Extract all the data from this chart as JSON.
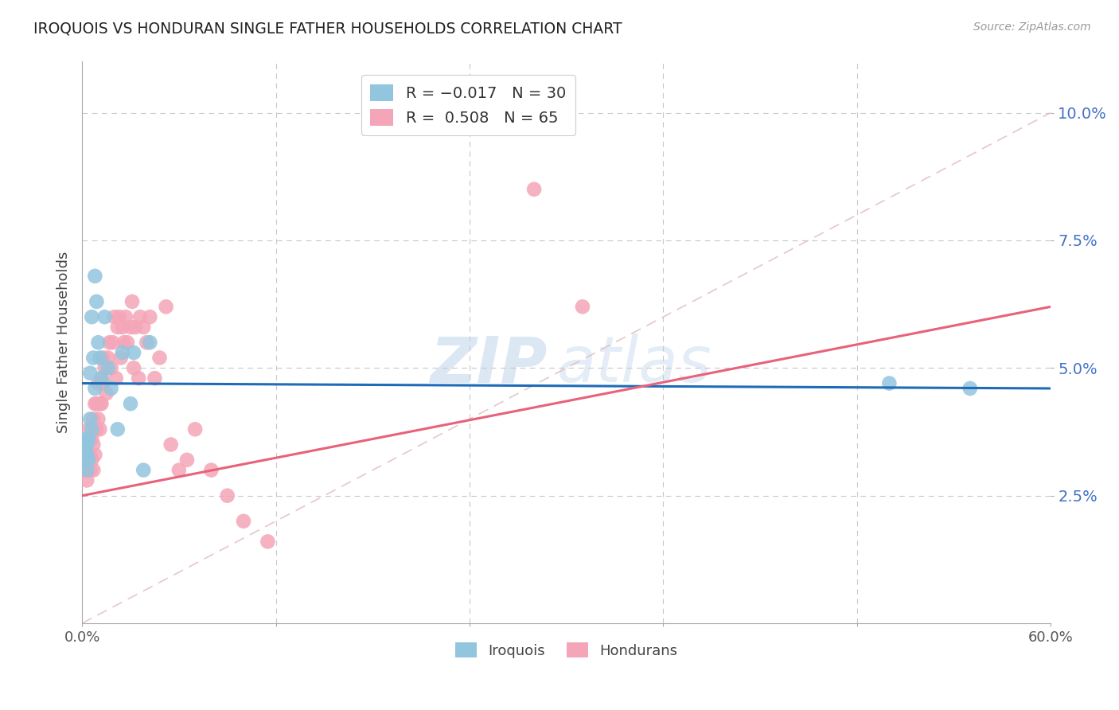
{
  "title": "IROQUOIS VS HONDURAN SINGLE FATHER HOUSEHOLDS CORRELATION CHART",
  "source": "Source: ZipAtlas.com",
  "ylabel": "Single Father Households",
  "ytick_labels": [
    "2.5%",
    "5.0%",
    "7.5%",
    "10.0%"
  ],
  "ytick_values": [
    0.025,
    0.05,
    0.075,
    0.1
  ],
  "xlim": [
    0.0,
    0.6
  ],
  "ylim": [
    0.0,
    0.11
  ],
  "watermark_zip": "ZIP",
  "watermark_atlas": "atlas",
  "iroquois_color": "#92c5de",
  "honduran_color": "#f4a6b8",
  "iroquois_line_color": "#1e6bb8",
  "honduran_line_color": "#e8627a",
  "diagonal_line_color": "#e0b8c0",
  "background_color": "#ffffff",
  "iroquois_x": [
    0.001,
    0.002,
    0.002,
    0.003,
    0.003,
    0.003,
    0.004,
    0.004,
    0.005,
    0.005,
    0.006,
    0.006,
    0.007,
    0.008,
    0.008,
    0.009,
    0.01,
    0.011,
    0.012,
    0.014,
    0.016,
    0.018,
    0.022,
    0.025,
    0.03,
    0.032,
    0.038,
    0.042,
    0.5,
    0.55
  ],
  "iroquois_y": [
    0.032,
    0.034,
    0.036,
    0.03,
    0.033,
    0.035,
    0.032,
    0.036,
    0.04,
    0.049,
    0.038,
    0.06,
    0.052,
    0.046,
    0.068,
    0.063,
    0.055,
    0.052,
    0.048,
    0.06,
    0.05,
    0.046,
    0.038,
    0.053,
    0.043,
    0.053,
    0.03,
    0.055,
    0.047,
    0.046
  ],
  "honduran_x": [
    0.001,
    0.002,
    0.002,
    0.003,
    0.003,
    0.004,
    0.004,
    0.005,
    0.005,
    0.005,
    0.006,
    0.006,
    0.007,
    0.007,
    0.007,
    0.008,
    0.008,
    0.008,
    0.009,
    0.009,
    0.01,
    0.01,
    0.011,
    0.011,
    0.012,
    0.012,
    0.013,
    0.013,
    0.014,
    0.015,
    0.016,
    0.017,
    0.018,
    0.019,
    0.02,
    0.021,
    0.022,
    0.023,
    0.024,
    0.025,
    0.026,
    0.027,
    0.028,
    0.03,
    0.031,
    0.032,
    0.033,
    0.035,
    0.036,
    0.038,
    0.04,
    0.042,
    0.045,
    0.048,
    0.052,
    0.055,
    0.06,
    0.065,
    0.07,
    0.08,
    0.09,
    0.1,
    0.115,
    0.28,
    0.31
  ],
  "honduran_y": [
    0.03,
    0.03,
    0.033,
    0.028,
    0.03,
    0.033,
    0.038,
    0.03,
    0.033,
    0.036,
    0.032,
    0.036,
    0.03,
    0.035,
    0.04,
    0.033,
    0.038,
    0.043,
    0.038,
    0.043,
    0.04,
    0.047,
    0.038,
    0.043,
    0.043,
    0.048,
    0.047,
    0.052,
    0.05,
    0.045,
    0.052,
    0.055,
    0.05,
    0.055,
    0.06,
    0.048,
    0.058,
    0.06,
    0.052,
    0.058,
    0.055,
    0.06,
    0.055,
    0.058,
    0.063,
    0.05,
    0.058,
    0.048,
    0.06,
    0.058,
    0.055,
    0.06,
    0.048,
    0.052,
    0.062,
    0.035,
    0.03,
    0.032,
    0.038,
    0.03,
    0.025,
    0.02,
    0.016,
    0.085,
    0.062
  ],
  "iroquois_line_x": [
    0.0,
    0.6
  ],
  "iroquois_line_y": [
    0.047,
    0.046
  ],
  "honduran_line_x": [
    0.0,
    0.6
  ],
  "honduran_line_y": [
    0.025,
    0.062
  ]
}
